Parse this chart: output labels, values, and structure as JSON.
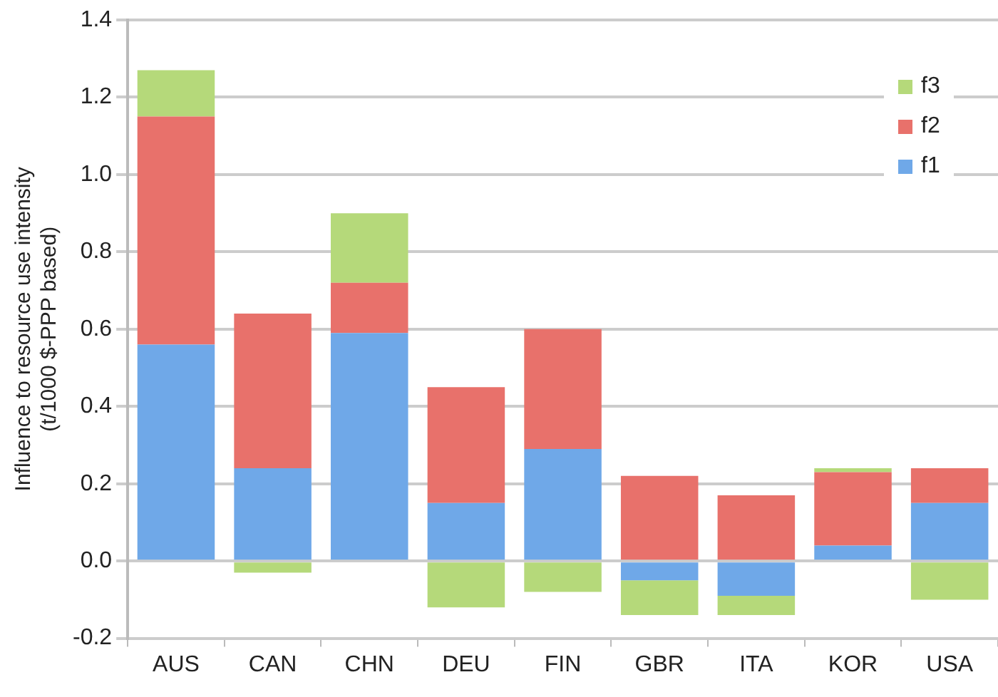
{
  "chart_data": {
    "type": "bar",
    "stacked": true,
    "ylabel": "Influence to resource use intensity\n(t/1000 $-PPP based)",
    "categories": [
      "AUS",
      "CAN",
      "CHN",
      "DEU",
      "FIN",
      "GBR",
      "ITA",
      "KOR",
      "USA"
    ],
    "series": [
      {
        "name": "f1",
        "color": "#6fa8e8",
        "values": [
          0.56,
          0.24,
          0.59,
          0.15,
          0.29,
          -0.05,
          -0.09,
          0.04,
          0.15
        ]
      },
      {
        "name": "f2",
        "color": "#e8716b",
        "values": [
          0.59,
          0.4,
          0.13,
          0.3,
          0.31,
          0.22,
          0.17,
          0.19,
          0.09
        ]
      },
      {
        "name": "f3",
        "color": "#b5d97a",
        "values": [
          0.12,
          -0.03,
          0.18,
          -0.12,
          -0.08,
          -0.09,
          -0.05,
          0.01,
          -0.1
        ]
      }
    ],
    "ylim": [
      -0.2,
      1.4
    ],
    "yticks": [
      -0.2,
      {
        "value": 0,
        "label": "0.0"
      },
      0.2,
      0.4,
      0.6,
      0.8,
      {
        "value": 1,
        "label": "1.0"
      },
      1.2,
      1.4
    ],
    "grid": "y",
    "legend": "top right"
  }
}
